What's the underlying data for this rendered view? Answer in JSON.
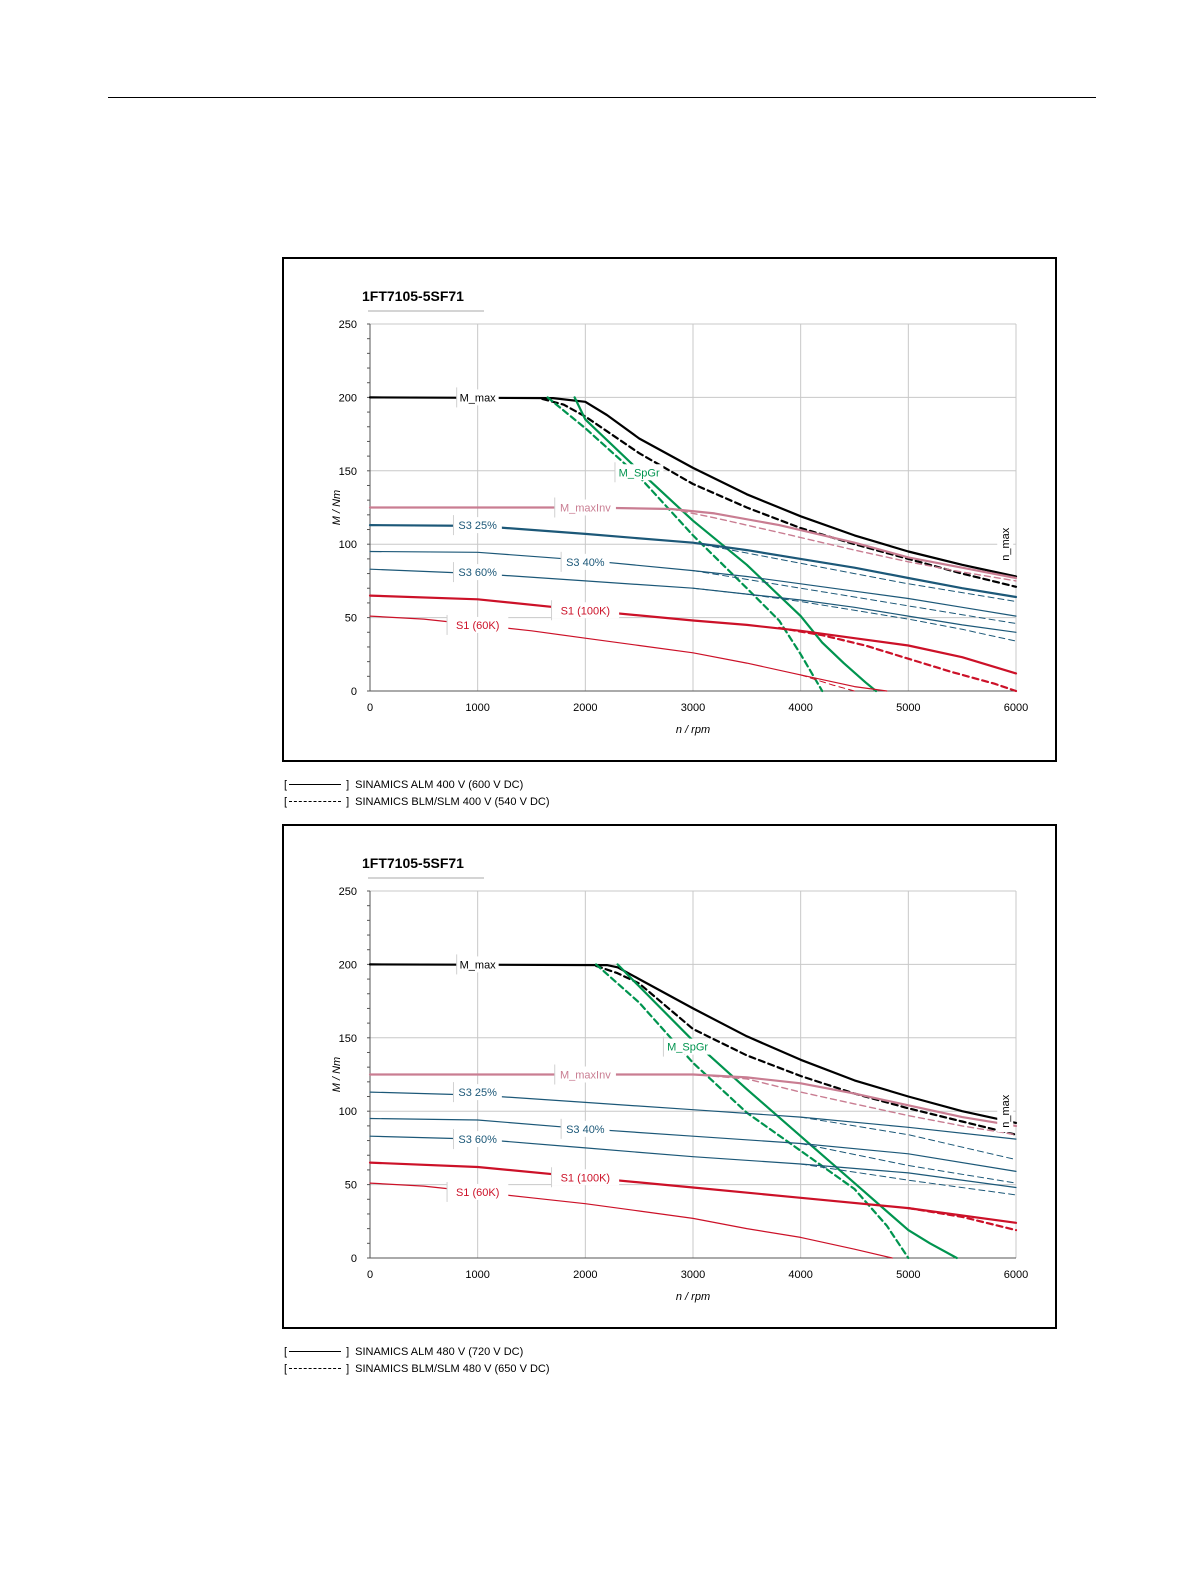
{
  "chart_data": [
    {
      "type": "line",
      "title": "1FT7105-5SF71",
      "xlabel": "n / rpm",
      "ylabel": "M / Nm",
      "xlim": [
        0,
        6000
      ],
      "ylim": [
        0,
        250
      ],
      "xticks": [
        0,
        1000,
        2000,
        3000,
        4000,
        5000,
        6000
      ],
      "yticks": [
        0,
        50,
        100,
        150,
        200,
        250
      ],
      "grid": true,
      "colors": {
        "black": "#000000",
        "green": "#00944f",
        "pink": "#c97d92",
        "blue": "#1c5878",
        "red": "#cc1128"
      },
      "annotations": [
        {
          "text": "M_max",
          "x": 1000,
          "y": 200,
          "color": "#000000"
        },
        {
          "text": "M_SpGr",
          "x": 2500,
          "y": 149,
          "color": "#00944f"
        },
        {
          "text": "M_maxInv",
          "x": 2000,
          "y": 125,
          "color": "#c97d92"
        },
        {
          "text": "S3 25%",
          "x": 1000,
          "y": 113,
          "color": "#1c5878"
        },
        {
          "text": "S3 40%",
          "x": 2000,
          "y": 88,
          "color": "#1c5878"
        },
        {
          "text": "S3 60%",
          "x": 1000,
          "y": 81,
          "color": "#1c5878"
        },
        {
          "text": "S1 (100K)",
          "x": 2000,
          "y": 55,
          "color": "#cc1128"
        },
        {
          "text": "S1 (60K)",
          "x": 1000,
          "y": 45,
          "color": "#cc1128"
        },
        {
          "text": "n_max",
          "x": 5900,
          "y": 100,
          "color": "#000000",
          "rotate": true
        }
      ],
      "series": [
        {
          "color": "#000000",
          "width": 2.2,
          "dashed": false,
          "x": [
            0,
            1700,
            2000,
            2200,
            2500,
            3000,
            3500,
            4000,
            4500,
            5000,
            5500,
            6000
          ],
          "y": [
            200,
            199.5,
            197,
            188,
            172,
            152,
            134,
            119,
            106,
            95,
            86,
            78
          ]
        },
        {
          "color": "#000000",
          "width": 2.2,
          "dashed": true,
          "x": [
            1600,
            1800,
            2000,
            2200,
            2500,
            3000,
            3500,
            4000,
            4500,
            5000,
            5500,
            6000
          ],
          "y": [
            199,
            195,
            187,
            177,
            162,
            141,
            125,
            111,
            100,
            90,
            80,
            71
          ]
        },
        {
          "color": "#00944f",
          "width": 2.2,
          "dashed": false,
          "x": [
            1900,
            2000,
            2500,
            3000,
            3500,
            4000,
            4200,
            4400,
            4600,
            4700
          ],
          "y": [
            200,
            185,
            150,
            116,
            86,
            51,
            33,
            19,
            6,
            0
          ]
        },
        {
          "color": "#00944f",
          "width": 2.2,
          "dashed": true,
          "x": [
            1650,
            2000,
            2500,
            3000,
            3500,
            3800,
            4000,
            4200
          ],
          "y": [
            200,
            179,
            146,
            106,
            70,
            48,
            25,
            0
          ]
        },
        {
          "color": "#c97d92",
          "width": 2.2,
          "dashed": false,
          "x": [
            0,
            2000,
            2800,
            3200,
            3800,
            4500,
            5000,
            5500,
            6000
          ],
          "y": [
            125,
            125,
            124,
            121,
            113,
            101,
            91,
            84,
            77
          ]
        },
        {
          "color": "#c97d92",
          "width": 1.4,
          "dashed": true,
          "x": [
            2800,
            3200,
            3800,
            4500,
            5000,
            5500,
            6000
          ],
          "y": [
            124,
            118,
            108,
            96,
            88,
            81,
            75
          ]
        },
        {
          "color": "#1c5878",
          "width": 2.2,
          "dashed": false,
          "x": [
            0,
            1000,
            2000,
            3000,
            3500,
            4000,
            4500,
            5000,
            5500,
            6000
          ],
          "y": [
            113,
            112.5,
            107,
            101,
            96,
            90,
            84,
            77,
            70,
            64
          ]
        },
        {
          "color": "#1c5878",
          "width": 1.0,
          "dashed": true,
          "x": [
            3000,
            3500,
            4000,
            4500,
            5000,
            5500,
            6000
          ],
          "y": [
            101,
            94,
            87,
            80,
            73,
            67,
            61
          ]
        },
        {
          "color": "#1c5878",
          "width": 1.2,
          "dashed": false,
          "x": [
            0,
            1000,
            2000,
            3000,
            3500,
            4000,
            4500,
            5000,
            5500,
            6000
          ],
          "y": [
            95,
            94.5,
            89,
            82,
            78,
            73,
            68,
            63,
            57,
            51
          ]
        },
        {
          "color": "#1c5878",
          "width": 1.0,
          "dashed": true,
          "x": [
            3000,
            3500,
            4000,
            4500,
            5000,
            5500,
            6000
          ],
          "y": [
            82,
            76,
            70,
            64,
            58,
            52,
            46
          ]
        },
        {
          "color": "#1c5878",
          "width": 1.2,
          "dashed": false,
          "x": [
            0,
            1000,
            2000,
            3000,
            3500,
            4000,
            4500,
            5000,
            5500,
            6000
          ],
          "y": [
            83,
            80,
            75,
            70,
            66,
            62,
            57,
            51,
            45,
            40
          ]
        },
        {
          "color": "#1c5878",
          "width": 1.0,
          "dashed": true,
          "x": [
            3000,
            3500,
            4000,
            4500,
            5000,
            5500,
            6000
          ],
          "y": [
            70,
            66,
            61,
            55,
            49,
            42,
            34
          ]
        },
        {
          "color": "#cc1128",
          "width": 2.2,
          "dashed": false,
          "x": [
            0,
            1000,
            2000,
            3000,
            3500,
            4000,
            4500,
            5000,
            5500,
            6000
          ],
          "y": [
            65,
            62.5,
            55,
            48,
            45,
            41,
            36,
            31,
            23,
            12
          ]
        },
        {
          "color": "#cc1128",
          "width": 2.2,
          "dashed": true,
          "x": [
            3800,
            4200,
            4600,
            5000,
            5400,
            5800,
            6000
          ],
          "y": [
            43,
            38,
            31,
            22,
            13,
            5,
            0
          ]
        },
        {
          "color": "#cc1128",
          "width": 1.2,
          "dashed": false,
          "x": [
            0,
            500,
            1000,
            1500,
            2000,
            2500,
            3000,
            3500,
            4000,
            4500,
            4800
          ],
          "y": [
            51,
            49,
            45,
            41,
            36,
            31,
            26,
            19,
            11,
            3,
            0
          ]
        },
        {
          "color": "#cc1128",
          "width": 1.0,
          "dashed": true,
          "x": [
            4000,
            4300,
            4500
          ],
          "y": [
            11,
            4,
            0
          ]
        }
      ]
    },
    {
      "type": "line",
      "title": "1FT7105-5SF71",
      "xlabel": "n / rpm",
      "ylabel": "M / Nm",
      "xlim": [
        0,
        6000
      ],
      "ylim": [
        0,
        250
      ],
      "xticks": [
        0,
        1000,
        2000,
        3000,
        4000,
        5000,
        6000
      ],
      "yticks": [
        0,
        50,
        100,
        150,
        200,
        250
      ],
      "grid": true,
      "colors": {
        "black": "#000000",
        "green": "#00944f",
        "pink": "#c97d92",
        "blue": "#1c5878",
        "red": "#cc1128"
      },
      "annotations": [
        {
          "text": "M_max",
          "x": 1000,
          "y": 200,
          "color": "#000000"
        },
        {
          "text": "M_SpGr",
          "x": 2950,
          "y": 144,
          "color": "#00944f"
        },
        {
          "text": "M_maxInv",
          "x": 2000,
          "y": 125,
          "color": "#c97d92"
        },
        {
          "text": "S3 25%",
          "x": 1000,
          "y": 113,
          "color": "#1c5878"
        },
        {
          "text": "S3 40%",
          "x": 2000,
          "y": 88,
          "color": "#1c5878"
        },
        {
          "text": "S3 60%",
          "x": 1000,
          "y": 81,
          "color": "#1c5878"
        },
        {
          "text": "S1 (100K)",
          "x": 2000,
          "y": 55,
          "color": "#cc1128"
        },
        {
          "text": "S1 (60K)",
          "x": 1000,
          "y": 45,
          "color": "#cc1128"
        },
        {
          "text": "n_max",
          "x": 5900,
          "y": 100,
          "color": "#000000",
          "rotate": true
        }
      ],
      "series": [
        {
          "color": "#000000",
          "width": 2.2,
          "dashed": false,
          "x": [
            0,
            2200,
            2300,
            2500,
            3000,
            3500,
            4000,
            4500,
            5000,
            5500,
            6000
          ],
          "y": [
            200,
            199.5,
            198,
            190,
            170,
            151,
            135,
            121,
            110,
            100,
            92
          ]
        },
        {
          "color": "#000000",
          "width": 2.2,
          "dashed": true,
          "x": [
            2100,
            2300,
            2500,
            3000,
            3500,
            4000,
            4500,
            5000,
            5500,
            6000
          ],
          "y": [
            199,
            194,
            187,
            156,
            138,
            124,
            112,
            102,
            93,
            84
          ]
        },
        {
          "color": "#00944f",
          "width": 2.2,
          "dashed": false,
          "x": [
            2300,
            2500,
            3000,
            3500,
            4000,
            4500,
            5000,
            5200,
            5450
          ],
          "y": [
            200,
            185,
            148,
            115,
            83,
            51,
            19,
            10,
            0
          ]
        },
        {
          "color": "#00944f",
          "width": 2.2,
          "dashed": true,
          "x": [
            2100,
            2500,
            3000,
            3500,
            4000,
            4500,
            4800,
            5000
          ],
          "y": [
            200,
            174,
            133,
            99,
            73,
            47,
            22,
            0
          ]
        },
        {
          "color": "#c97d92",
          "width": 2.2,
          "dashed": false,
          "x": [
            0,
            3000,
            3500,
            4000,
            4500,
            5000,
            5500,
            6000
          ],
          "y": [
            125,
            125,
            123,
            119,
            112,
            104,
            96,
            90
          ]
        },
        {
          "color": "#c97d92",
          "width": 1.4,
          "dashed": true,
          "x": [
            3000,
            3500,
            4000,
            4500,
            5000,
            5500,
            6000
          ],
          "y": [
            125,
            122,
            113,
            105,
            97,
            90,
            84
          ]
        },
        {
          "color": "#1c5878",
          "width": 1.2,
          "dashed": false,
          "x": [
            0,
            1000,
            2000,
            3000,
            4000,
            5000,
            6000
          ],
          "y": [
            113,
            111,
            106,
            101,
            96,
            89,
            81
          ]
        },
        {
          "color": "#1c5878",
          "width": 1.2,
          "dashed": false,
          "x": [
            0,
            1000,
            2000,
            3000,
            4000,
            5000,
            6000
          ],
          "y": [
            95,
            94,
            88,
            83,
            78,
            71,
            59
          ]
        },
        {
          "color": "#1c5878",
          "width": 1.0,
          "dashed": true,
          "x": [
            4000,
            5000,
            6000
          ],
          "y": [
            96,
            84,
            67
          ]
        },
        {
          "color": "#1c5878",
          "width": 1.2,
          "dashed": false,
          "x": [
            0,
            1000,
            2000,
            3000,
            4000,
            5000,
            6000
          ],
          "y": [
            83,
            81,
            75,
            69,
            64,
            58,
            48
          ]
        },
        {
          "color": "#1c5878",
          "width": 1.0,
          "dashed": true,
          "x": [
            4000,
            5000,
            6000
          ],
          "y": [
            78,
            63,
            51
          ]
        },
        {
          "color": "#1c5878",
          "width": 1.0,
          "dashed": true,
          "x": [
            4000,
            5000,
            6000
          ],
          "y": [
            64,
            53,
            43
          ]
        },
        {
          "color": "#cc1128",
          "width": 2.2,
          "dashed": false,
          "x": [
            0,
            1000,
            2000,
            3000,
            4000,
            5000,
            6000
          ],
          "y": [
            65,
            62,
            55,
            48,
            41,
            34,
            24
          ]
        },
        {
          "color": "#cc1128",
          "width": 2.2,
          "dashed": true,
          "x": [
            5000,
            5500,
            6000
          ],
          "y": [
            34,
            28,
            19
          ]
        },
        {
          "color": "#cc1128",
          "width": 1.2,
          "dashed": false,
          "x": [
            0,
            500,
            1000,
            1500,
            2000,
            2500,
            3000,
            3500,
            4000,
            4500,
            4850
          ],
          "y": [
            51,
            49,
            45,
            41,
            37,
            32,
            27,
            20,
            14,
            6,
            0
          ]
        }
      ]
    }
  ],
  "legends": [
    {
      "rows": [
        {
          "open": "[",
          "close": "]",
          "style": "solid",
          "text": "SINAMICS ALM 400 V (600 V DC)"
        },
        {
          "open": "[",
          "close": "]",
          "style": "dashed",
          "text": "SINAMICS BLM/SLM 400 V (540 V DC)"
        }
      ]
    },
    {
      "rows": [
        {
          "open": "[",
          "close": "]",
          "style": "solid",
          "text": "SINAMICS ALM 480 V (720 V DC)"
        },
        {
          "open": "[",
          "close": "]",
          "style": "dashed",
          "text": "SINAMICS BLM/SLM 480 V (650 V DC)"
        }
      ]
    }
  ]
}
